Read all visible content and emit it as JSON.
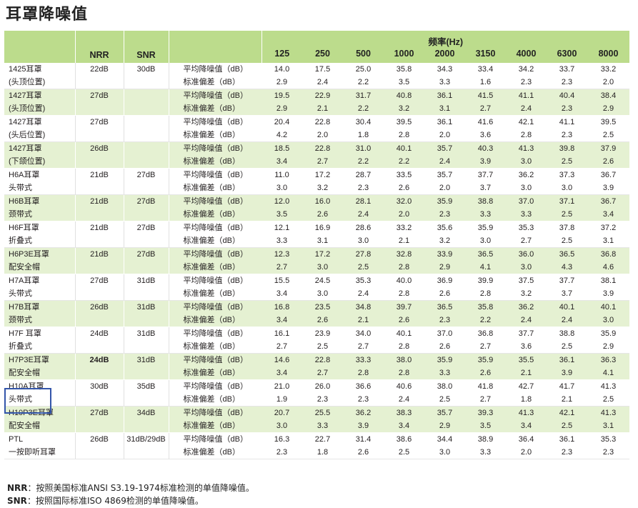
{
  "page_title": "耳罩降噪值",
  "header": {
    "nrr": "NRR",
    "snr": "SNR",
    "freq_group": "频率(Hz)",
    "frequencies": [
      "125",
      "250",
      "500",
      "1000",
      "2000",
      "3150",
      "4000",
      "6300",
      "8000"
    ]
  },
  "rows": [
    {
      "model": [
        "1425耳罩",
        "(头顶位置)"
      ],
      "nrr": "22dB",
      "snr": "30dB",
      "label_mean": "平均降噪值（dB）",
      "label_sd": "标准偏差（dB）",
      "mean": [
        "14.0",
        "17.5",
        "25.0",
        "35.8",
        "34.3",
        "33.4",
        "34.2",
        "33.7",
        "33.2"
      ],
      "sd": [
        "2.9",
        "2.4",
        "2.2",
        "3.5",
        "3.3",
        "1.6",
        "2.3",
        "2.3",
        "2.0"
      ]
    },
    {
      "model": [
        "1427耳罩",
        "(头顶位置)"
      ],
      "nrr": "27dB",
      "snr": "",
      "label_mean": "平均降噪值（dB）",
      "label_sd": "标准偏差（dB）",
      "mean": [
        "19.5",
        "22.9",
        "31.7",
        "40.8",
        "36.1",
        "41.5",
        "41.1",
        "40.4",
        "38.4"
      ],
      "sd": [
        "2.9",
        "2.1",
        "2.2",
        "3.2",
        "3.1",
        "2.7",
        "2.4",
        "2.3",
        "2.9"
      ]
    },
    {
      "model": [
        "1427耳罩",
        "(头后位置)"
      ],
      "nrr": "27dB",
      "snr": "",
      "label_mean": "平均降噪值（dB）",
      "label_sd": "标准偏差（dB）",
      "mean": [
        "20.4",
        "22.8",
        "30.4",
        "39.5",
        "36.1",
        "41.6",
        "42.1",
        "41.1",
        "39.5"
      ],
      "sd": [
        "4.2",
        "2.0",
        "1.8",
        "2.8",
        "2.0",
        "3.6",
        "2.8",
        "2.3",
        "2.5"
      ]
    },
    {
      "model": [
        "1427耳罩",
        "(下颌位置)"
      ],
      "nrr": "26dB",
      "snr": "",
      "label_mean": "平均降噪值（dB）",
      "label_sd": "标准偏差（dB）",
      "mean": [
        "18.5",
        "22.8",
        "31.0",
        "40.1",
        "35.7",
        "40.3",
        "41.3",
        "39.8",
        "37.9"
      ],
      "sd": [
        "3.4",
        "2.7",
        "2.2",
        "2.2",
        "2.4",
        "3.9",
        "3.0",
        "2.5",
        "2.6"
      ]
    },
    {
      "model": [
        "H6A耳罩",
        "头带式"
      ],
      "nrr": "21dB",
      "snr": "27dB",
      "label_mean": "平均降噪值（dB）",
      "label_sd": "标准偏差（dB）",
      "mean": [
        "11.0",
        "17.2",
        "28.7",
        "33.5",
        "35.7",
        "37.7",
        "36.2",
        "37.3",
        "36.7"
      ],
      "sd": [
        "3.0",
        "3.2",
        "2.3",
        "2.6",
        "2.0",
        "3.7",
        "3.0",
        "3.0",
        "3.9"
      ]
    },
    {
      "model": [
        "H6B耳罩",
        "颈带式"
      ],
      "nrr": "21dB",
      "snr": "27dB",
      "label_mean": "平均降噪值（dB）",
      "label_sd": "标准偏差（dB）",
      "mean": [
        "12.0",
        "16.0",
        "28.1",
        "32.0",
        "35.9",
        "38.8",
        "37.0",
        "37.1",
        "36.7"
      ],
      "sd": [
        "3.5",
        "2.6",
        "2.4",
        "2.0",
        "2.3",
        "3.3",
        "3.3",
        "2.5",
        "3.4"
      ]
    },
    {
      "model": [
        "H6F耳罩",
        "折叠式"
      ],
      "nrr": "21dB",
      "snr": "27dB",
      "label_mean": "平均降噪值（dB）",
      "label_sd": "标准偏差（dB）",
      "mean": [
        "12.1",
        "16.9",
        "28.6",
        "33.2",
        "35.6",
        "35.9",
        "35.3",
        "37.8",
        "37.2"
      ],
      "sd": [
        "3.3",
        "3.1",
        "3.0",
        "2.1",
        "3.2",
        "3.0",
        "2.7",
        "2.5",
        "3.1"
      ]
    },
    {
      "model": [
        "H6P3E耳罩",
        "配安全帽"
      ],
      "nrr": "21dB",
      "snr": "27dB",
      "label_mean": "平均降噪值（dB）",
      "label_sd": "标准偏差（dB）",
      "mean": [
        "12.3",
        "17.2",
        "27.8",
        "32.8",
        "33.9",
        "36.5",
        "36.0",
        "36.5",
        "36.8"
      ],
      "sd": [
        "2.7",
        "3.0",
        "2.5",
        "2.8",
        "2.9",
        "4.1",
        "3.0",
        "4.3",
        "4.6"
      ]
    },
    {
      "model": [
        "H7A耳罩",
        "头带式"
      ],
      "nrr": "27dB",
      "snr": "31dB",
      "label_mean": "平均降噪值（dB）",
      "label_sd": "标准偏差（dB）",
      "mean": [
        "15.5",
        "24.5",
        "35.3",
        "40.0",
        "36.9",
        "39.9",
        "37.5",
        "37.7",
        "38.1"
      ],
      "sd": [
        "3.4",
        "3.0",
        "2.4",
        "2.8",
        "2.6",
        "2.8",
        "3.2",
        "3.7",
        "3.9"
      ]
    },
    {
      "model": [
        "H7B耳罩",
        "颈带式"
      ],
      "nrr": "26dB",
      "snr": "31dB",
      "label_mean": "平均降噪值（dB）",
      "label_sd": "标准偏差（dB）",
      "mean": [
        "16.8",
        "23.5",
        "34.8",
        "39.7",
        "36.5",
        "35.8",
        "36.2",
        "40.1",
        "40.1"
      ],
      "sd": [
        "3.4",
        "2.6",
        "2.1",
        "2.6",
        "2.3",
        "2.2",
        "2.4",
        "2.4",
        "3.0"
      ]
    },
    {
      "model": [
        "H7F 耳罩",
        "折叠式"
      ],
      "nrr": "24dB",
      "snr": "31dB",
      "label_mean": "平均降噪值（dB）",
      "label_sd": "标准偏差（dB）",
      "mean": [
        "16.1",
        "23.9",
        "34.0",
        "40.1",
        "37.0",
        "36.8",
        "37.7",
        "38.8",
        "35.9"
      ],
      "sd": [
        "2.7",
        "2.5",
        "2.7",
        "2.8",
        "2.6",
        "2.7",
        "3.6",
        "2.5",
        "2.9"
      ]
    },
    {
      "model": [
        "H7P3E耳罩",
        "配安全帽"
      ],
      "nrr": "24dB",
      "snr": "31dB",
      "nrr_bold": true,
      "label_mean": "平均降噪值（dB）",
      "label_sd": "标准偏差（dB）",
      "mean": [
        "14.6",
        "22.8",
        "33.3",
        "38.0",
        "35.9",
        "35.9",
        "35.5",
        "36.1",
        "36.3"
      ],
      "sd": [
        "3.4",
        "2.7",
        "2.8",
        "2.8",
        "3.3",
        "2.6",
        "2.1",
        "3.9",
        "4.1"
      ]
    },
    {
      "model": [
        "H10A耳罩",
        "头带式"
      ],
      "nrr": "30dB",
      "snr": "35dB",
      "label_mean": "平均降噪值（dB）",
      "label_sd": "标准偏差（dB）",
      "mean": [
        "21.0",
        "26.0",
        "36.6",
        "40.6",
        "38.0",
        "41.8",
        "42.7",
        "41.7",
        "41.3"
      ],
      "sd": [
        "1.9",
        "2.3",
        "2.3",
        "2.4",
        "2.5",
        "2.7",
        "1.8",
        "2.1",
        "2.5"
      ]
    },
    {
      "model": [
        "H10P3E耳罩",
        "配安全帽"
      ],
      "nrr": "27dB",
      "snr": "34dB",
      "label_mean": "平均降噪值（dB）",
      "label_sd": "标准偏差（dB）",
      "mean": [
        "20.7",
        "25.5",
        "36.2",
        "38.3",
        "35.7",
        "39.3",
        "41.3",
        "42.1",
        "41.3"
      ],
      "sd": [
        "3.0",
        "3.3",
        "3.9",
        "3.4",
        "2.9",
        "3.5",
        "3.4",
        "2.5",
        "3.1"
      ]
    },
    {
      "model": [
        "PTL",
        "一按即听耳罩"
      ],
      "nrr": "26dB",
      "snr": "31dB/29dB",
      "label_mean": "平均降噪值（dB）",
      "label_sd": "标准偏差（dB）",
      "mean": [
        "16.3",
        "22.7",
        "31.4",
        "38.6",
        "34.4",
        "38.9",
        "36.4",
        "36.1",
        "35.3"
      ],
      "sd": [
        "2.3",
        "1.8",
        "2.6",
        "2.5",
        "3.0",
        "3.3",
        "2.0",
        "2.3",
        "2.3"
      ]
    }
  ],
  "notes": [
    {
      "term": "NRR",
      "text": "：按照美国标准ANSI S3.19-1974标准检测的单值降噪值。"
    },
    {
      "term": "SNR",
      "text": "：按照国际标准ISO 4869检测的单值降噪值。"
    }
  ]
}
